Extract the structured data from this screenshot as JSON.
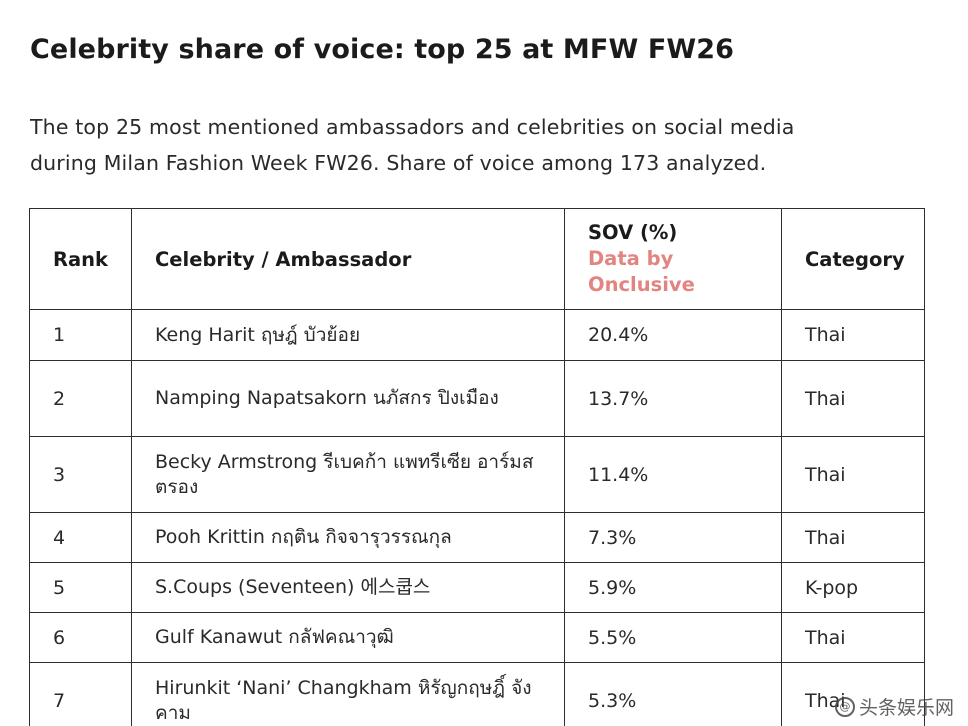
{
  "title": "Celebrity share of voice: top 25 at MFW FW26",
  "subtitle_line1": "The top 25 most mentioned ambassadors and celebrities on social media",
  "subtitle_line2": "during Milan Fashion Week FW26. Share of voice among 173 analyzed.",
  "table": {
    "headers": {
      "rank": "Rank",
      "name": "Celebrity / Ambassador",
      "sov": "SOV (%)",
      "sov_note_line1": "Data by",
      "sov_note_line2": "Onclusive",
      "category": "Category"
    },
    "rows": [
      {
        "rank": "1",
        "name": "Keng Harit ฤษฎ์ บัวย้อย",
        "sov": "20.4%",
        "category": "Thai"
      },
      {
        "rank": "2",
        "name": "Namping Napatsakorn นภัสกร ปิงเมือง",
        "sov": "13.7%",
        "category": "Thai"
      },
      {
        "rank": "3",
        "name": "Becky Armstrong รีเบคก้า แพทรีเซีย อาร์มสตรอง",
        "sov": "11.4%",
        "category": "Thai"
      },
      {
        "rank": "4",
        "name": "Pooh Krittin กฤติน กิจจารุวรรณกุล",
        "sov": "7.3%",
        "category": "Thai"
      },
      {
        "rank": "5",
        "name": "S.Coups (Seventeen) 에스쿱스",
        "sov": "5.9%",
        "category": "K-pop"
      },
      {
        "rank": "6",
        "name": "Gulf Kanawut กลัฟคณาวุฒิ",
        "sov": "5.5%",
        "category": "Thai"
      },
      {
        "rank": "7",
        "name": "Hirunkit ‘Nani’ Changkham หิรัญกฤษฎิ์ จังคาม",
        "sov": "5.3%",
        "category": "Thai"
      }
    ]
  },
  "watermark": "头条娱乐网",
  "watermark_icon": "@"
}
